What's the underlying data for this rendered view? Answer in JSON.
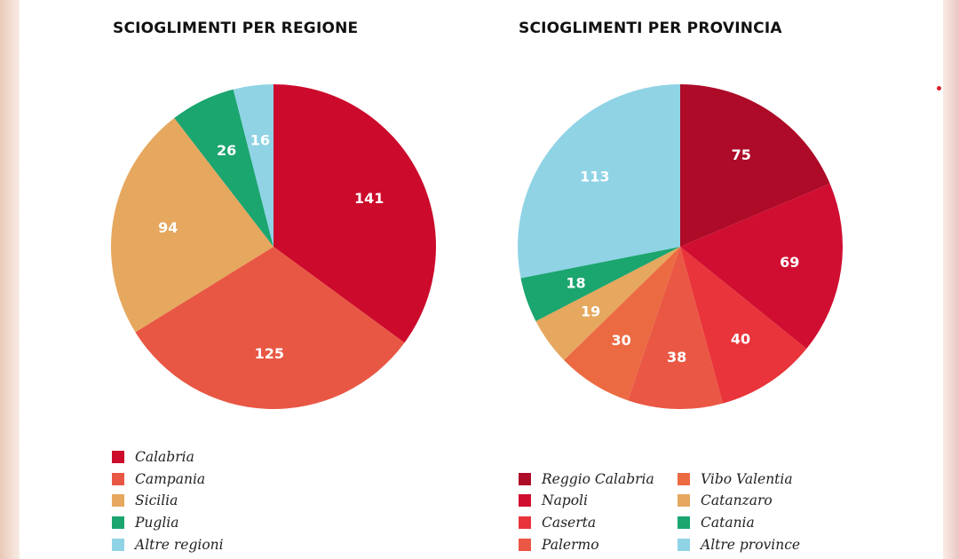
{
  "chart_data": [
    {
      "type": "pie",
      "title": "SCIOGLIMENTI PER REGIONE",
      "slices": [
        {
          "label": "Calabria",
          "value": 141,
          "color": "#cc0a2b"
        },
        {
          "label": "Campania",
          "value": 125,
          "color": "#e85744"
        },
        {
          "label": "Sicilia",
          "value": 94,
          "color": "#e6a75e"
        },
        {
          "label": "Puglia",
          "value": 26,
          "color": "#1ba56f"
        },
        {
          "label": "Altre regioni",
          "value": 16,
          "color": "#8fd3e5"
        }
      ]
    },
    {
      "type": "pie",
      "title": "SCIOGLIMENTI PER PROVINCIA",
      "slices": [
        {
          "label": "Reggio Calabria",
          "value": 75,
          "color": "#ad0b28"
        },
        {
          "label": "Napoli",
          "value": 69,
          "color": "#d00e31"
        },
        {
          "label": "Caserta",
          "value": 40,
          "color": "#e8343a"
        },
        {
          "label": "Palermo",
          "value": 38,
          "color": "#ea5744"
        },
        {
          "label": "Vibo Valentia",
          "value": 30,
          "color": "#ec6a42"
        },
        {
          "label": "Catanzaro",
          "value": 19,
          "color": "#e6a75e"
        },
        {
          "label": "Catania",
          "value": 18,
          "color": "#1ba56f"
        },
        {
          "label": "Altre province",
          "value": 113,
          "color": "#8fd3e5"
        }
      ]
    }
  ],
  "accent_dot_color": "#d9202a"
}
